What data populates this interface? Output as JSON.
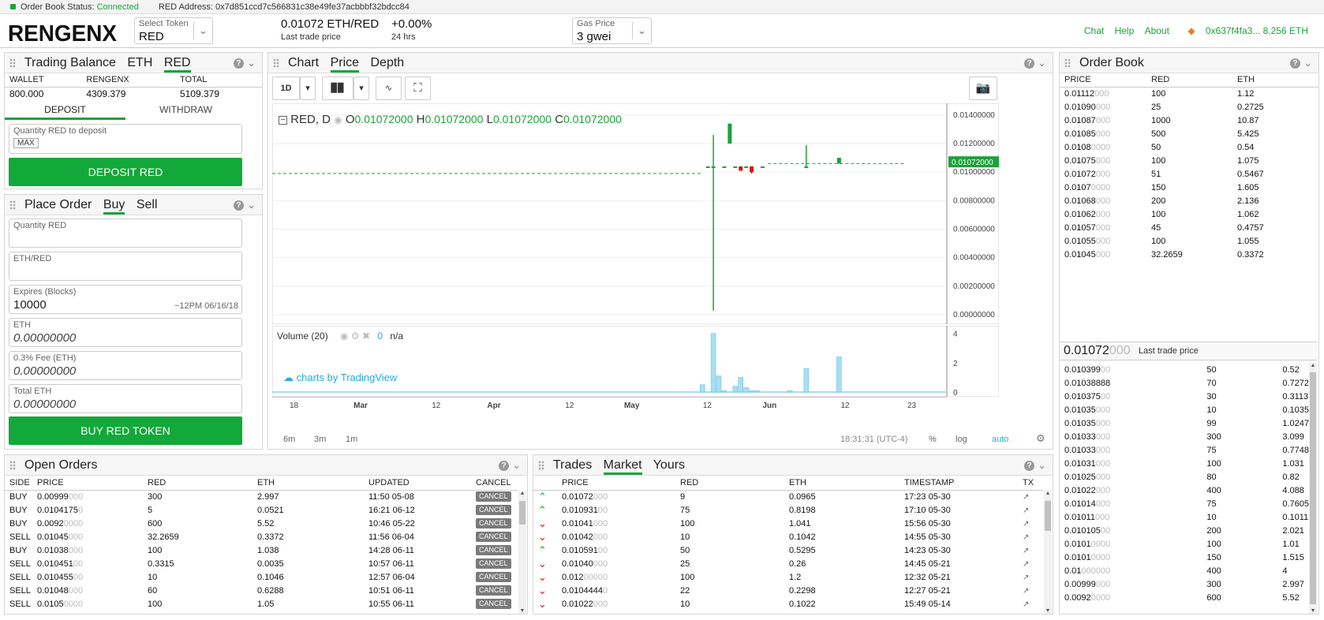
{
  "status": {
    "label": "Order Book Status:",
    "state": "Connected",
    "address_label": "RED",
    "address_text": "Address: 0x7d851ccd7c566831c38e49fe37acbbbf32bdcc84"
  },
  "header": {
    "logo": "RENGENX",
    "token_select": {
      "label": "Select Token",
      "value": "RED"
    },
    "last_price": "0.01072 ETH/RED",
    "last_price_label": "Last trade price",
    "change": "+0.00%",
    "change_label": "24 hrs",
    "gas": {
      "label": "Gas Price",
      "value": "3 gwei"
    },
    "links": [
      "Chat",
      "Help",
      "About"
    ],
    "wallet": "0x637f4fa3... 8.256 ETH"
  },
  "balance": {
    "title": "Trading Balance",
    "tabs": [
      "ETH",
      "RED"
    ],
    "headers": [
      "WALLET",
      "RENGENX",
      "TOTAL"
    ],
    "values": [
      "800.000",
      "4309.379",
      "5109.379"
    ],
    "mode_tabs": [
      "DEPOSIT",
      "WITHDRAW"
    ],
    "qty_label": "Quantity RED to deposit",
    "max": "MAX",
    "button": "DEPOSIT RED"
  },
  "order": {
    "title": "Place Order",
    "tabs": [
      "Buy",
      "Sell"
    ],
    "qty_label": "Quantity RED",
    "price_label": "ETH/RED",
    "expires_label": "Expires (Blocks)",
    "expires_value": "10000",
    "expires_note": "~12PM 06/16/18",
    "eth_label": "ETH",
    "eth_value": "0.00000000",
    "fee_label": "0.3% Fee (ETH)",
    "fee_value": "0.00000000",
    "total_label": "Total ETH",
    "total_value": "0.00000000",
    "button": "BUY RED TOKEN"
  },
  "chart": {
    "tabs": [
      "Chart",
      "Price",
      "Depth"
    ],
    "interval": "1D",
    "symbol": "RED, D",
    "ohlc": {
      "o": "0.01072000",
      "h": "0.01072000",
      "l": "0.01072000",
      "c": "0.01072000"
    },
    "current_price": "0.01072000",
    "volume_label": "Volume (20)",
    "volume_value": "0",
    "volume_na": "n/a",
    "brand": "charts by TradingView",
    "ranges": [
      "6m",
      "3m",
      "1m"
    ],
    "time": "18:31:31 (UTC-4)",
    "scale_buttons": [
      "%",
      "log",
      "auto"
    ]
  },
  "chart_data": {
    "type": "candlestick",
    "y_ticks": [
      "0.01400000",
      "0.01200000",
      "0.01000000",
      "0.00800000",
      "0.00600000",
      "0.00400000",
      "0.00200000",
      "0.00000000"
    ],
    "x_ticks": [
      "18",
      "Mar",
      "12",
      "Apr",
      "12",
      "May",
      "12",
      "Jun",
      "12",
      "23"
    ],
    "volume_ticks": [
      "4",
      "2",
      "0"
    ],
    "ylim": [
      0,
      0.0146
    ],
    "candles": [
      {
        "d": 79,
        "o": 0.0104,
        "h": 0.0104,
        "l": 0.0104,
        "c": 0.0104
      },
      {
        "d": 80,
        "o": 0.0104,
        "h": 0.0126,
        "l": 0.0003,
        "c": 0.0104
      },
      {
        "d": 82,
        "o": 0.0104,
        "h": 0.0104,
        "l": 0.0104,
        "c": 0.0104
      },
      {
        "d": 83,
        "o": 0.012,
        "h": 0.0134,
        "l": 0.012,
        "c": 0.0134
      },
      {
        "d": 84,
        "o": 0.0104,
        "h": 0.0104,
        "l": 0.0104,
        "c": 0.0104
      },
      {
        "d": 85,
        "o": 0.0104,
        "h": 0.0104,
        "l": 0.0101,
        "c": 0.0101
      },
      {
        "d": 86,
        "o": 0.0103,
        "h": 0.0104,
        "l": 0.0103,
        "c": 0.0104
      },
      {
        "d": 87,
        "o": 0.0104,
        "h": 0.0104,
        "l": 0.0099,
        "c": 0.01
      },
      {
        "d": 89,
        "o": 0.0104,
        "h": 0.0104,
        "l": 0.0104,
        "c": 0.0104
      },
      {
        "d": 97,
        "o": 0.0104,
        "h": 0.0119,
        "l": 0.0104,
        "c": 0.0104
      },
      {
        "d": 103,
        "o": 0.0106,
        "h": 0.011,
        "l": 0.0106,
        "c": 0.011
      }
    ],
    "volume": [
      {
        "d": 78,
        "v": 0.5
      },
      {
        "d": 80,
        "v": 4.0
      },
      {
        "d": 81,
        "v": 1.1
      },
      {
        "d": 82,
        "v": 0.1
      },
      {
        "d": 84,
        "v": 0.4
      },
      {
        "d": 85,
        "v": 1.0
      },
      {
        "d": 86,
        "v": 0.3
      },
      {
        "d": 87,
        "v": 0.1
      },
      {
        "d": 88,
        "v": 0.1
      },
      {
        "d": 94,
        "v": 0.1
      },
      {
        "d": 97,
        "v": 1.6
      },
      {
        "d": 103,
        "v": 2.4
      }
    ]
  },
  "order_book": {
    "title": "Order Book",
    "headers": [
      "PRICE",
      "RED",
      "ETH"
    ],
    "asks": [
      [
        "0.01112",
        "000",
        "100",
        "1.12"
      ],
      [
        "0.01090",
        "000",
        "25",
        "0.2725"
      ],
      [
        "0.01087",
        "000",
        "1000",
        "10.87"
      ],
      [
        "0.01085",
        "000",
        "500",
        "5.425"
      ],
      [
        "0.0108",
        "0000",
        "50",
        "0.54"
      ],
      [
        "0.01075",
        "000",
        "100",
        "1.075"
      ],
      [
        "0.01072",
        "000",
        "51",
        "0.5467"
      ],
      [
        "0.0107",
        "0000",
        "150",
        "1.605"
      ],
      [
        "0.01068",
        "000",
        "200",
        "2.136"
      ],
      [
        "0.01062",
        "000",
        "100",
        "1.062"
      ],
      [
        "0.01057",
        "000",
        "45",
        "0.4757"
      ],
      [
        "0.01055",
        "000",
        "100",
        "1.055"
      ],
      [
        "0.01045",
        "000",
        "32.2659",
        "0.3372"
      ]
    ],
    "last_price": "0.01072",
    "last_price_dim": "000",
    "last_price_label": "Last trade price",
    "bids": [
      [
        "0.010399",
        "00",
        "50",
        "0.52"
      ],
      [
        "0.01038888",
        "",
        "70",
        "0.7272"
      ],
      [
        "0.010375",
        "00",
        "30",
        "0.3113"
      ],
      [
        "0.01035",
        "000",
        "10",
        "0.1035"
      ],
      [
        "0.01035",
        "000",
        "99",
        "1.0247"
      ],
      [
        "0.01033",
        "000",
        "300",
        "3.099"
      ],
      [
        "0.01033",
        "000",
        "75",
        "0.7748"
      ],
      [
        "0.01031",
        "000",
        "100",
        "1.031"
      ],
      [
        "0.01025",
        "000",
        "80",
        "0.82"
      ],
      [
        "0.01022",
        "000",
        "400",
        "4.088"
      ],
      [
        "0.01014",
        "000",
        "75",
        "0.7605"
      ],
      [
        "0.01011",
        "000",
        "10",
        "0.1011"
      ],
      [
        "0.010105",
        "00",
        "200",
        "2.021"
      ],
      [
        "0.0101",
        "0000",
        "100",
        "1.01"
      ],
      [
        "0.0101",
        "0000",
        "150",
        "1.515"
      ],
      [
        "0.01",
        "000000",
        "400",
        "4"
      ],
      [
        "0.00999",
        "000",
        "300",
        "2.997"
      ],
      [
        "0.0092",
        "0000",
        "600",
        "5.52"
      ]
    ]
  },
  "open_orders": {
    "title": "Open Orders",
    "headers": [
      "SIDE",
      "PRICE",
      "RED",
      "ETH",
      "UPDATED",
      "CANCEL"
    ],
    "cancel_label": "CANCEL",
    "rows": [
      [
        "BUY",
        "0.00999",
        "000",
        "300",
        "2.997",
        "11:50 05-08"
      ],
      [
        "BUY",
        "0.0104175",
        "0",
        "5",
        "0.0521",
        "16:21 06-12"
      ],
      [
        "BUY",
        "0.0092",
        "0000",
        "600",
        "5.52",
        "10:46 05-22"
      ],
      [
        "SELL",
        "0.01045",
        "000",
        "32.2659",
        "0.3372",
        "11:56 06-04"
      ],
      [
        "BUY",
        "0.01038",
        "000",
        "100",
        "1.038",
        "14:28 06-11"
      ],
      [
        "SELL",
        "0.010451",
        "00",
        "0.3315",
        "0.0035",
        "10:57 06-11"
      ],
      [
        "SELL",
        "0.010455",
        "00",
        "10",
        "0.1046",
        "12:57 06-04"
      ],
      [
        "SELL",
        "0.01048",
        "000",
        "60",
        "0.6288",
        "10:51 06-11"
      ],
      [
        "SELL",
        "0.0105",
        "0000",
        "100",
        "1.05",
        "10:55 06-11"
      ]
    ]
  },
  "trades": {
    "title": "Trades",
    "tabs": [
      "Market",
      "Yours"
    ],
    "headers": [
      "PRICE",
      "RED",
      "ETH",
      "TIMESTAMP",
      "TX"
    ],
    "rows": [
      [
        "up",
        "0.01072",
        "000",
        "9",
        "0.0965",
        "17:23 05-30"
      ],
      [
        "up",
        "0.010931",
        "00",
        "75",
        "0.8198",
        "17:10 05-30"
      ],
      [
        "down",
        "0.01041",
        "000",
        "100",
        "1.041",
        "15:56 05-30"
      ],
      [
        "down",
        "0.01042",
        "000",
        "10",
        "0.1042",
        "14:55 05-30"
      ],
      [
        "up",
        "0.010591",
        "00",
        "50",
        "0.5295",
        "14:23 05-30"
      ],
      [
        "down",
        "0.01040",
        "000",
        "25",
        "0.26",
        "14:45 05-21"
      ],
      [
        "down",
        "0.012",
        "00000",
        "100",
        "1.2",
        "12:32 05-21"
      ],
      [
        "down",
        "0.0104444",
        "0",
        "22",
        "0.2298",
        "12:27 05-21"
      ],
      [
        "down",
        "0.01022",
        "000",
        "10",
        "0.1022",
        "15:49 05-14"
      ]
    ]
  }
}
